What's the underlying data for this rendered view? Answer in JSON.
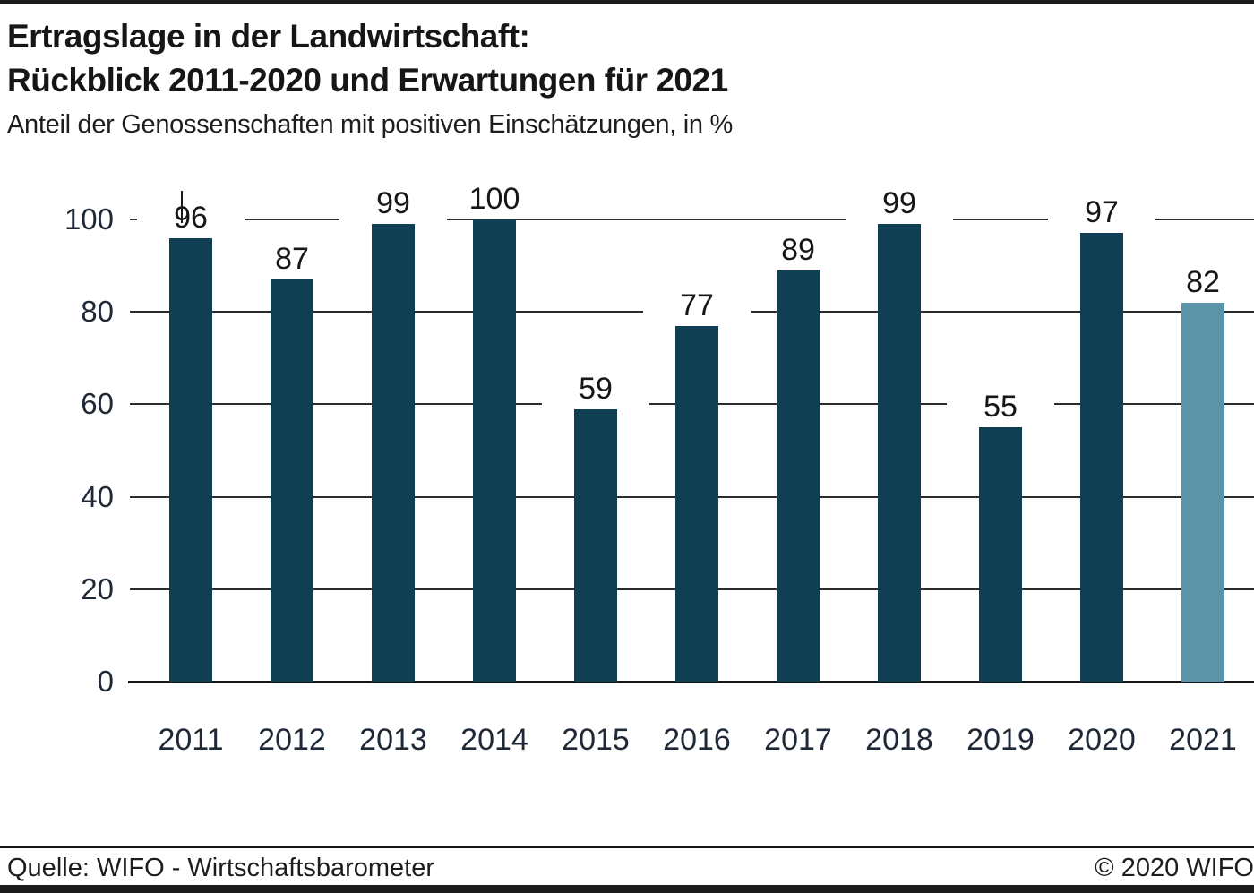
{
  "header": {
    "title_line1": "Ertragslage in der Landwirtschaft:",
    "title_line2": "Rückblick 2011-2020 und Erwartungen für 2021",
    "subtitle": "Anteil der Genossenschaften mit positiven Einschätzungen, in %"
  },
  "chart_data": {
    "type": "bar",
    "title": "Ertragslage in der Landwirtschaft: Rückblick 2011-2020 und Erwartungen für 2021",
    "subtitle": "Anteil der Genossenschaften mit positiven Einschätzungen, in %",
    "categories": [
      "2011",
      "2012",
      "2013",
      "2014",
      "2015",
      "2016",
      "2017",
      "2018",
      "2019",
      "2020",
      "2021"
    ],
    "values": [
      96,
      87,
      99,
      100,
      59,
      77,
      89,
      99,
      55,
      97,
      82
    ],
    "xlabel": "",
    "ylabel": "",
    "ylim": [
      0,
      100
    ],
    "yticks": [
      0,
      20,
      40,
      60,
      80,
      100
    ],
    "grid": true,
    "legend": "none",
    "value_labels": true,
    "bar_color": "#103e52",
    "highlight_color": "#5b93a8",
    "highlight_index": 10,
    "highlight_meaning": "Erwartung für 2021"
  },
  "footer": {
    "source": "Quelle: WIFO - Wirtschaftsbarometer",
    "copyright": "© 2020 WIFO"
  }
}
